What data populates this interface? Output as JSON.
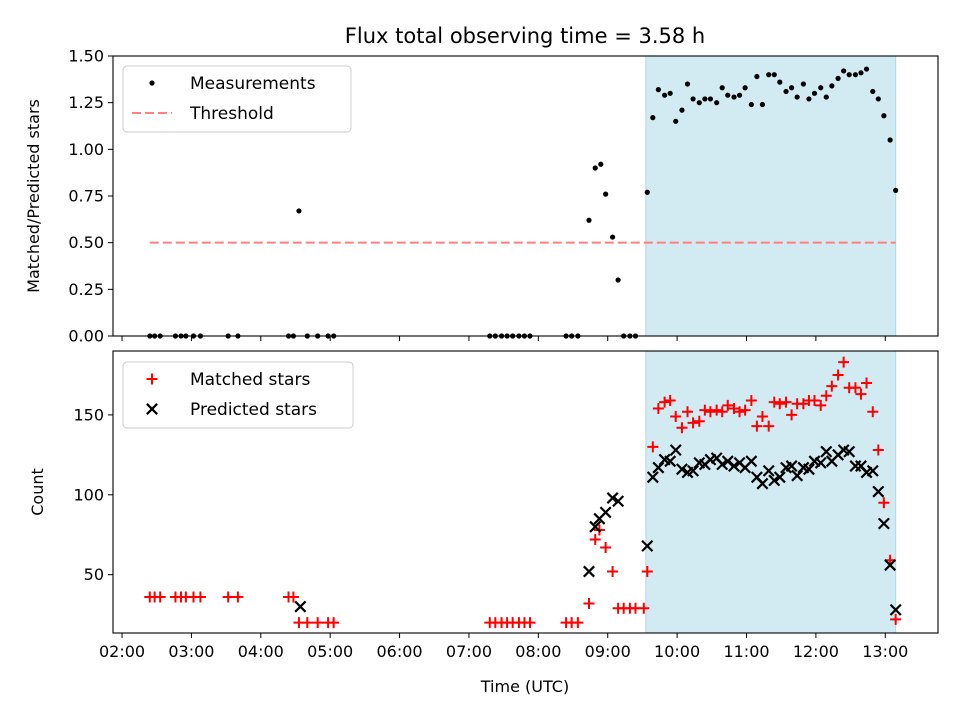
{
  "chart_data": {
    "title": "Flux total observing time = 3.58 h",
    "xlabel": "Time (UTC)",
    "x_unit": "hours (UTC)",
    "xlim": [
      1.87,
      13.76
    ],
    "x_ticks": [
      {
        "v": 2,
        "label": "02:00"
      },
      {
        "v": 3,
        "label": "03:00"
      },
      {
        "v": 4,
        "label": "04:00"
      },
      {
        "v": 5,
        "label": "05:00"
      },
      {
        "v": 6,
        "label": "06:00"
      },
      {
        "v": 7,
        "label": "07:00"
      },
      {
        "v": 8,
        "label": "08:00"
      },
      {
        "v": 9,
        "label": "09:00"
      },
      {
        "v": 10,
        "label": "10:00"
      },
      {
        "v": 11,
        "label": "11:00"
      },
      {
        "v": 12,
        "label": "12:00"
      },
      {
        "v": 13,
        "label": "13:00"
      }
    ],
    "shaded_span": {
      "x": [
        9.55,
        13.15
      ],
      "color": "#add8e6"
    },
    "panels": [
      {
        "type": "scatter",
        "ylabel": "Matched/Predicted stars",
        "ylim": [
          0,
          1.5
        ],
        "y_ticks": [
          {
            "v": 0,
            "label": "0.00"
          },
          {
            "v": 0.25,
            "label": "0.25"
          },
          {
            "v": 0.5,
            "label": "0.50"
          },
          {
            "v": 0.75,
            "label": "0.75"
          },
          {
            "v": 1.0,
            "label": "1.00"
          },
          {
            "v": 1.25,
            "label": "1.25"
          },
          {
            "v": 1.5,
            "label": "1.50"
          }
        ],
        "legend": {
          "position": "upper-left"
        },
        "series": [
          {
            "name": "Measurements",
            "marker": "dot",
            "color": "#000000",
            "x": [
              2.4,
              2.47,
              2.55,
              2.77,
              2.85,
              2.92,
              3.03,
              3.13,
              3.53,
              3.67,
              4.4,
              4.47,
              4.55,
              4.67,
              4.82,
              4.97,
              5.05,
              7.3,
              7.38,
              7.47,
              7.55,
              7.63,
              7.72,
              7.8,
              7.88,
              8.4,
              8.48,
              8.57,
              8.73,
              8.82,
              8.9,
              8.97,
              9.07,
              9.15,
              9.23,
              9.32,
              9.4,
              9.57,
              9.65,
              9.73,
              9.82,
              9.9,
              9.98,
              10.07,
              10.15,
              10.23,
              10.32,
              10.4,
              10.48,
              10.57,
              10.65,
              10.73,
              10.82,
              10.9,
              10.98,
              11.07,
              11.15,
              11.23,
              11.32,
              11.4,
              11.48,
              11.57,
              11.65,
              11.73,
              11.82,
              11.9,
              11.98,
              12.07,
              12.15,
              12.23,
              12.32,
              12.4,
              12.48,
              12.57,
              12.65,
              12.73,
              12.82,
              12.9,
              12.98,
              13.07,
              13.15
            ],
            "y": [
              0,
              0,
              0,
              0,
              0,
              0,
              0,
              0,
              0,
              0,
              0,
              0,
              0.67,
              0,
              0,
              0,
              0,
              0,
              0,
              0,
              0,
              0,
              0,
              0,
              0,
              0,
              0,
              0,
              0.62,
              0.9,
              0.92,
              0.76,
              0.53,
              0.3,
              0,
              0,
              0,
              0.77,
              1.17,
              1.32,
              1.29,
              1.3,
              1.15,
              1.21,
              1.35,
              1.27,
              1.25,
              1.27,
              1.27,
              1.25,
              1.33,
              1.29,
              1.28,
              1.29,
              1.33,
              1.24,
              1.39,
              1.24,
              1.4,
              1.4,
              1.36,
              1.31,
              1.33,
              1.28,
              1.35,
              1.27,
              1.3,
              1.33,
              1.28,
              1.34,
              1.38,
              1.42,
              1.4,
              1.4,
              1.41,
              1.43,
              1.31,
              1.27,
              1.18,
              1.05,
              0.78
            ]
          },
          {
            "name": "Threshold",
            "marker": "dashed-line",
            "color": "#ff7f7f",
            "x": [
              2.4,
              13.15
            ],
            "y": [
              0.5,
              0.5
            ]
          }
        ]
      },
      {
        "type": "scatter",
        "ylabel": "Count",
        "ylim": [
          13.5,
          190
        ],
        "y_ticks": [
          {
            "v": 50,
            "label": "50"
          },
          {
            "v": 100,
            "label": "100"
          },
          {
            "v": 150,
            "label": "150"
          }
        ],
        "legend": {
          "position": "upper-left"
        },
        "series": [
          {
            "name": "Matched stars",
            "marker": "plus",
            "color": "#ff0000",
            "x": [
              2.4,
              2.47,
              2.55,
              2.77,
              2.85,
              2.92,
              3.03,
              3.13,
              3.53,
              3.67,
              4.4,
              4.47,
              4.55,
              4.67,
              4.82,
              4.97,
              5.05,
              7.3,
              7.38,
              7.47,
              7.55,
              7.63,
              7.72,
              7.8,
              7.88,
              8.4,
              8.48,
              8.57,
              8.73,
              8.82,
              8.88,
              8.97,
              9.07,
              9.15,
              9.23,
              9.32,
              9.4,
              9.52,
              9.57,
              9.65,
              9.73,
              9.82,
              9.9,
              9.98,
              10.07,
              10.15,
              10.23,
              10.32,
              10.4,
              10.48,
              10.57,
              10.65,
              10.73,
              10.82,
              10.9,
              10.98,
              11.07,
              11.15,
              11.23,
              11.32,
              11.4,
              11.48,
              11.57,
              11.65,
              11.73,
              11.82,
              11.9,
              11.98,
              12.07,
              12.15,
              12.23,
              12.32,
              12.4,
              12.48,
              12.57,
              12.65,
              12.73,
              12.82,
              12.9,
              12.98,
              13.07,
              13.15
            ],
            "y": [
              36,
              36,
              36,
              36,
              36,
              36,
              36,
              36,
              36,
              36,
              36,
              36,
              20,
              20,
              20,
              20,
              20,
              20,
              20,
              20,
              20,
              20,
              20,
              20,
              20,
              20,
              20,
              20,
              32,
              72,
              78,
              67,
              52,
              29,
              29,
              29,
              29,
              29,
              52,
              130,
              154,
              158,
              159,
              149,
              142,
              152,
              145,
              146,
              153,
              152,
              153,
              152,
              156,
              154,
              152,
              153,
              159,
              143,
              149,
              143,
              158,
              157,
              158,
              150,
              157,
              157,
              159,
              159,
              156,
              162,
              168,
              175,
              183,
              167,
              167,
              163,
              170,
              152,
              128,
              95,
              59,
              22
            ]
          },
          {
            "name": "Predicted stars",
            "marker": "cross",
            "color": "#000000",
            "x": [
              4.57,
              8.73,
              8.82,
              8.88,
              8.97,
              9.07,
              9.15,
              9.57,
              9.65,
              9.73,
              9.82,
              9.9,
              9.98,
              10.07,
              10.15,
              10.23,
              10.32,
              10.4,
              10.48,
              10.57,
              10.65,
              10.73,
              10.82,
              10.9,
              10.98,
              11.07,
              11.15,
              11.23,
              11.32,
              11.4,
              11.48,
              11.57,
              11.65,
              11.73,
              11.82,
              11.9,
              11.98,
              12.07,
              12.15,
              12.23,
              12.32,
              12.4,
              12.48,
              12.57,
              12.65,
              12.73,
              12.82,
              12.9,
              12.98,
              13.07,
              13.15
            ],
            "y": [
              30,
              52,
              80,
              85,
              89,
              98,
              96,
              68,
              111,
              117,
              122,
              121,
              128,
              116,
              114,
              115,
              120,
              119,
              122,
              123,
              119,
              121,
              118,
              120,
              117,
              121,
              111,
              107,
              115,
              109,
              111,
              117,
              118,
              112,
              117,
              116,
              121,
              120,
              127,
              121,
              125,
              128,
              127,
              118,
              118,
              114,
              115,
              102,
              82,
              56,
              28
            ]
          }
        ]
      }
    ]
  }
}
